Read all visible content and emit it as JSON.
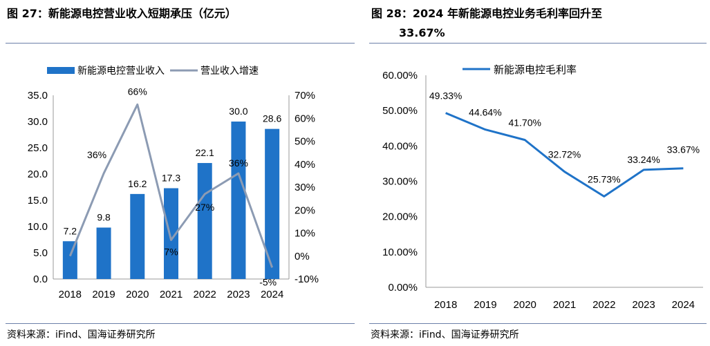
{
  "left": {
    "title": "图 27：新能源电控营业收入短期承压（亿元）",
    "source": "资料来源：iFind、国海证券研究所",
    "colors": {
      "bar": "#1f73c8",
      "line": "#8c9bb3"
    }
  },
  "right": {
    "title_line1": "图 28：2024 年新能源电控业务毛利率回升至",
    "title_line2": "33.67%",
    "source": "资料来源：iFind、国海证券研究所",
    "colors": {
      "line": "#1f73c8"
    }
  },
  "chart_data": [
    {
      "type": "bar",
      "categories": [
        "2018",
        "2019",
        "2020",
        "2021",
        "2022",
        "2023",
        "2024"
      ],
      "series": [
        {
          "name": "新能源电控营业收入",
          "type": "bar",
          "axis": "left",
          "values": [
            7.2,
            9.8,
            16.2,
            17.3,
            22.1,
            30.0,
            28.6
          ],
          "labels": [
            "7.2",
            "9.8",
            "16.2",
            "17.3",
            "22.1",
            "30.0",
            "28.6"
          ]
        },
        {
          "name": "营业收入增速",
          "type": "line",
          "axis": "right",
          "values": [
            0,
            36,
            66,
            7,
            27,
            36,
            -5
          ],
          "labels": [
            "",
            "36%",
            "66%",
            "7%",
            "27%",
            "36%",
            "-5%"
          ]
        }
      ],
      "y_left": {
        "ylim": [
          0,
          35
        ],
        "ticks": [
          "0.0",
          "5.0",
          "10.0",
          "15.0",
          "20.0",
          "25.0",
          "30.0",
          "35.0"
        ]
      },
      "y_right": {
        "ylim": [
          -10,
          70
        ],
        "ticks": [
          "-10%",
          "0%",
          "10%",
          "20%",
          "30%",
          "40%",
          "50%",
          "60%",
          "70%"
        ]
      },
      "legend": "top",
      "grid": false
    },
    {
      "type": "line",
      "categories": [
        "2018",
        "2019",
        "2020",
        "2021",
        "2022",
        "2023",
        "2024"
      ],
      "series": [
        {
          "name": "新能源电控毛利率",
          "values": [
            49.33,
            44.64,
            41.7,
            32.72,
            25.73,
            33.24,
            33.67
          ],
          "labels": [
            "49.33%",
            "44.64%",
            "41.70%",
            "32.72%",
            "25.73%",
            "33.24%",
            "33.67%"
          ]
        }
      ],
      "y": {
        "ylim": [
          0,
          60
        ],
        "ticks": [
          "0.00%",
          "10.00%",
          "20.00%",
          "30.00%",
          "40.00%",
          "50.00%",
          "60.00%"
        ]
      },
      "legend": "top",
      "grid": false
    }
  ]
}
